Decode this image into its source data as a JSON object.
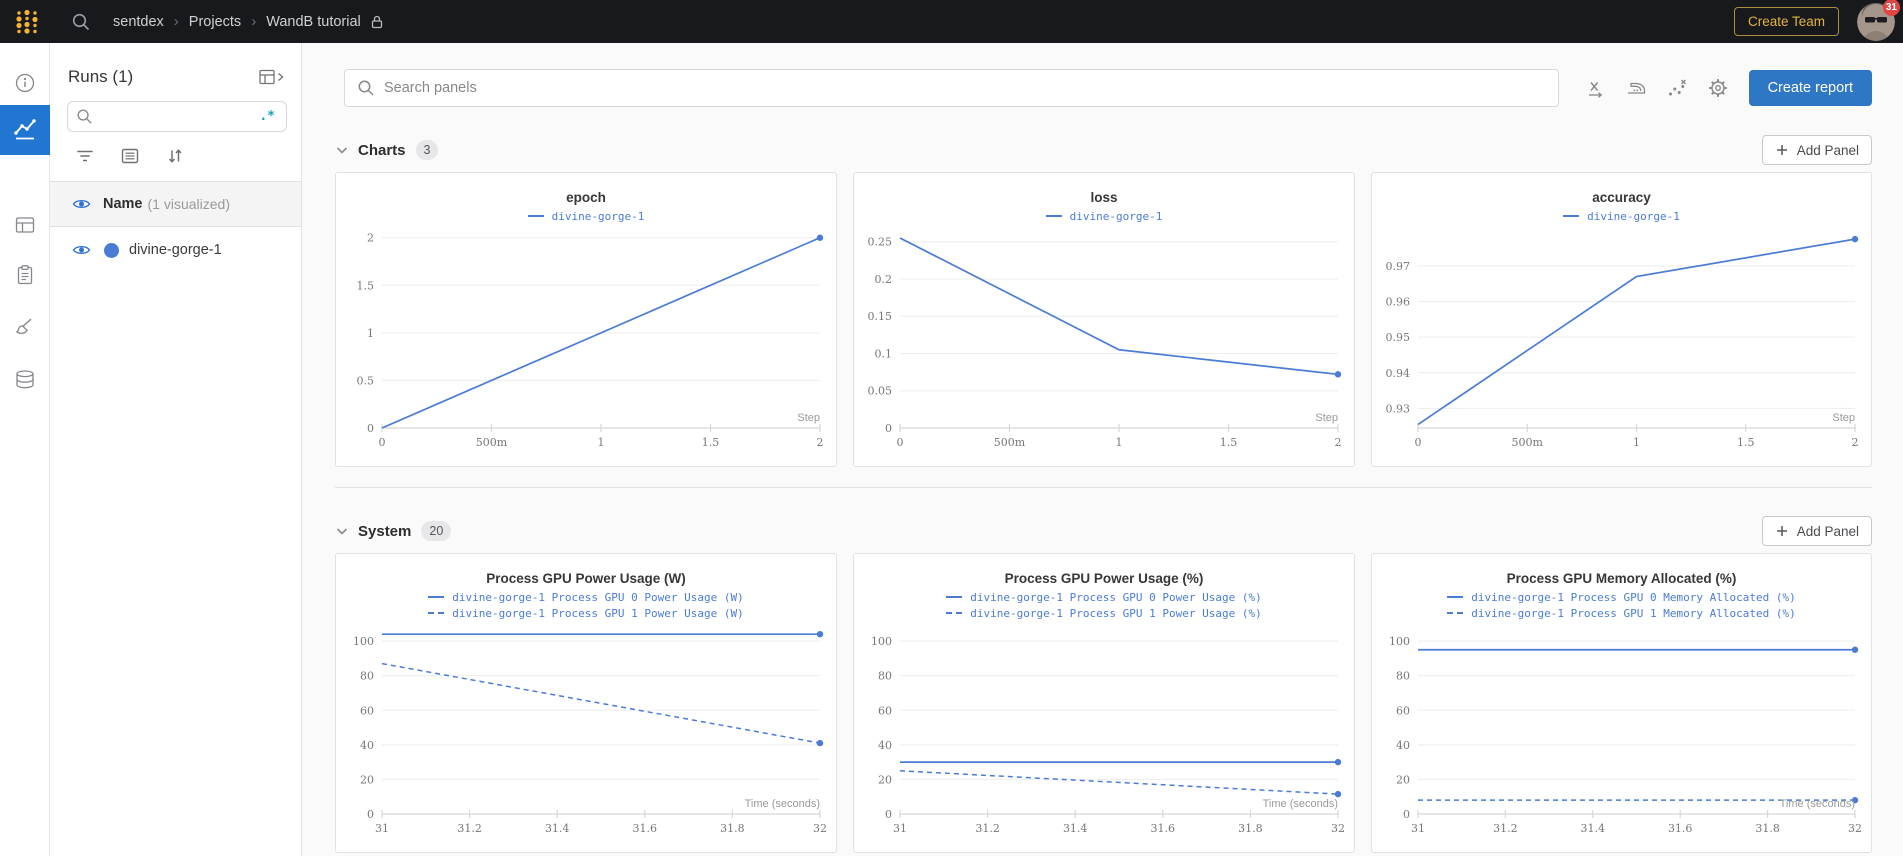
{
  "navbar": {
    "breadcrumb": [
      "sentdex",
      "Projects",
      "WandB tutorial"
    ],
    "create_team_label": "Create Team",
    "notification_count": "31",
    "brand_gold": "#f5b32b",
    "bar_color": "#17191d"
  },
  "sidebar": {
    "runs_title": "Runs (1)",
    "search_placeholder": "",
    "regex_label": ".*",
    "name_row": {
      "label": "Name",
      "sub": "(1 visualized)"
    },
    "runs": [
      {
        "name": "divine-gorge-1",
        "color": "#4a7cd6",
        "visible": true
      }
    ]
  },
  "main": {
    "search_placeholder": "Search panels",
    "create_report_label": "Create report",
    "sections": [
      {
        "title": "Charts",
        "count": "3",
        "add_panel_label": "Add Panel"
      },
      {
        "title": "System",
        "count": "20",
        "add_panel_label": "Add Panel"
      }
    ]
  },
  "chart_style": {
    "line_color": "#4a7cd6",
    "grid_color": "#ededee",
    "axis_color": "#d7d7d9",
    "tick_text_color": "#76777a",
    "axis_label_color": "#98999c"
  },
  "icons": {
    "wandb-logo": "gold dot grid",
    "search-icon": "magnifier",
    "lock-icon": "padlock",
    "info-icon": "circled i",
    "line-chart-icon": "zigzag with dots",
    "table-icon": "grid",
    "clipboard-icon": "clipboard",
    "brush-icon": "paintbrush",
    "database-icon": "cylinder",
    "filter-icon": "funnel lines",
    "list-icon": "boxed list",
    "sort-icon": "down-up arrows",
    "eye-icon": "visibility eye",
    "regex-icon": ".*",
    "x-axis-icon": "x with right arrow",
    "smoothing-icon": "iron",
    "outlier-icon": "scatter dots with x",
    "gear-icon": "cog",
    "chevron-down-icon": "v",
    "plus-icon": "+",
    "chevron-right-icon": "›"
  },
  "chart_data": [
    {
      "type": "line",
      "title": "epoch",
      "legend": [
        {
          "label": "divine-gorge-1",
          "dash": false
        }
      ],
      "xlabel": "Step",
      "x_ticks": {
        "values": [
          0,
          0.5,
          1,
          1.5,
          2
        ],
        "labels": [
          "0",
          "500m",
          "1",
          "1.5",
          "2"
        ]
      },
      "y_ticks": {
        "values": [
          0,
          0.5,
          1,
          1.5,
          2
        ],
        "labels": [
          "0",
          "0.5",
          "1",
          "1.5",
          "2"
        ]
      },
      "xlim": [
        0,
        2
      ],
      "ylim": [
        0,
        2.06
      ],
      "series": [
        {
          "name": "divine-gorge-1",
          "dash": false,
          "end_dot": true,
          "points": [
            [
              0,
              0
            ],
            [
              1,
              1
            ],
            [
              2,
              2
            ]
          ]
        }
      ]
    },
    {
      "type": "line",
      "title": "loss",
      "legend": [
        {
          "label": "divine-gorge-1",
          "dash": false
        }
      ],
      "xlabel": "Step",
      "x_ticks": {
        "values": [
          0,
          0.5,
          1,
          1.5,
          2
        ],
        "labels": [
          "0",
          "500m",
          "1",
          "1.5",
          "2"
        ]
      },
      "y_ticks": {
        "values": [
          0,
          0.05,
          0.1,
          0.15,
          0.2,
          0.25
        ],
        "labels": [
          "0",
          "0.05",
          "0.1",
          "0.15",
          "0.2",
          "0.25"
        ]
      },
      "xlim": [
        0,
        2
      ],
      "ylim": [
        0,
        0.263
      ],
      "series": [
        {
          "name": "divine-gorge-1",
          "dash": false,
          "end_dot": true,
          "points": [
            [
              0,
              0.255
            ],
            [
              1,
              0.105
            ],
            [
              2,
              0.072
            ]
          ]
        }
      ]
    },
    {
      "type": "line",
      "title": "accuracy",
      "legend": [
        {
          "label": "divine-gorge-1",
          "dash": false
        }
      ],
      "xlabel": "Step",
      "x_ticks": {
        "values": [
          0,
          0.5,
          1,
          1.5,
          2
        ],
        "labels": [
          "0",
          "500m",
          "1",
          "1.5",
          "2"
        ]
      },
      "y_ticks": {
        "values": [
          0.93,
          0.94,
          0.95,
          0.96,
          0.97
        ],
        "labels": [
          "0.93",
          "0.94",
          "0.95",
          "0.96",
          "0.97"
        ]
      },
      "xlim": [
        0,
        2
      ],
      "ylim": [
        0.9245,
        0.9795
      ],
      "series": [
        {
          "name": "divine-gorge-1",
          "dash": false,
          "end_dot": true,
          "points": [
            [
              0,
              0.9255
            ],
            [
              1,
              0.967
            ],
            [
              2,
              0.9775
            ]
          ]
        }
      ]
    },
    {
      "type": "line",
      "title": "Process GPU Power Usage (W)",
      "legend": [
        {
          "label": "divine-gorge-1 Process GPU 0 Power Usage (W)",
          "dash": false
        },
        {
          "label": "divine-gorge-1 Process GPU 1 Power Usage (W)",
          "dash": true
        }
      ],
      "xlabel": "Time (seconds)",
      "x_ticks": {
        "values": [
          31,
          31.2,
          31.4,
          31.6,
          31.8,
          32
        ],
        "labels": [
          "31",
          "31.2",
          "31.4",
          "31.6",
          "31.8",
          "32"
        ]
      },
      "y_ticks": {
        "values": [
          0,
          20,
          40,
          60,
          80,
          100
        ],
        "labels": [
          "0",
          "20",
          "40",
          "60",
          "80",
          "100"
        ]
      },
      "xlim": [
        31,
        32
      ],
      "ylim": [
        0,
        107
      ],
      "series": [
        {
          "name": "Process GPU 0 Power Usage (W)",
          "dash": false,
          "end_dot": true,
          "points": [
            [
              31,
              104
            ],
            [
              32,
              104
            ]
          ]
        },
        {
          "name": "Process GPU 1 Power Usage (W)",
          "dash": true,
          "end_dot": true,
          "points": [
            [
              31,
              87
            ],
            [
              32,
              41
            ]
          ]
        }
      ]
    },
    {
      "type": "line",
      "title": "Process GPU Power Usage (%)",
      "legend": [
        {
          "label": "divine-gorge-1 Process GPU 0 Power Usage (%)",
          "dash": false
        },
        {
          "label": "divine-gorge-1 Process GPU 1 Power Usage (%)",
          "dash": true
        }
      ],
      "xlabel": "Time (seconds)",
      "x_ticks": {
        "values": [
          31,
          31.2,
          31.4,
          31.6,
          31.8,
          32
        ],
        "labels": [
          "31",
          "31.2",
          "31.4",
          "31.6",
          "31.8",
          "32"
        ]
      },
      "y_ticks": {
        "values": [
          0,
          20,
          40,
          60,
          80,
          100
        ],
        "labels": [
          "0",
          "20",
          "40",
          "60",
          "80",
          "100"
        ]
      },
      "xlim": [
        31,
        32
      ],
      "ylim": [
        0,
        107
      ],
      "series": [
        {
          "name": "Process GPU 0 Power Usage (%)",
          "dash": false,
          "end_dot": true,
          "points": [
            [
              31,
              30
            ],
            [
              32,
              30
            ]
          ]
        },
        {
          "name": "Process GPU 1 Power Usage (%)",
          "dash": true,
          "end_dot": true,
          "points": [
            [
              31,
              25
            ],
            [
              32,
              11.5
            ]
          ]
        }
      ]
    },
    {
      "type": "line",
      "title": "Process GPU Memory Allocated (%)",
      "legend": [
        {
          "label": "divine-gorge-1 Process GPU 0 Memory Allocated (%)",
          "dash": false
        },
        {
          "label": "divine-gorge-1 Process GPU 1 Memory Allocated (%)",
          "dash": true
        }
      ],
      "xlabel": "Time (seconds)",
      "x_ticks": {
        "values": [
          31,
          31.2,
          31.4,
          31.6,
          31.8,
          32
        ],
        "labels": [
          "31",
          "31.2",
          "31.4",
          "31.6",
          "31.8",
          "32"
        ]
      },
      "y_ticks": {
        "values": [
          0,
          20,
          40,
          60,
          80,
          100
        ],
        "labels": [
          "0",
          "20",
          "40",
          "60",
          "80",
          "100"
        ]
      },
      "xlim": [
        31,
        32
      ],
      "ylim": [
        0,
        107
      ],
      "series": [
        {
          "name": "Process GPU 0 Memory Allocated (%)",
          "dash": false,
          "end_dot": true,
          "points": [
            [
              31,
              95
            ],
            [
              32,
              95
            ]
          ]
        },
        {
          "name": "Process GPU 1 Memory Allocated (%)",
          "dash": true,
          "end_dot": true,
          "points": [
            [
              31,
              8
            ],
            [
              32,
              8
            ]
          ]
        }
      ]
    }
  ]
}
